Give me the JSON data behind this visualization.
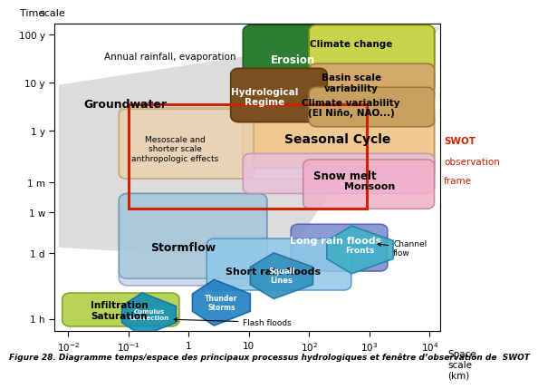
{
  "background_color": "#ffffff",
  "gray_band_color": "#c0c0c0",
  "time_labels": [
    "1 h",
    "1 d",
    "1 w",
    "1 m",
    "1 y",
    "10 y",
    "100 y"
  ],
  "space_labels": [
    "$10^{-2}$",
    "$10^{-1}$",
    "1",
    "10",
    "$10^{2}$",
    "$10^{3}$",
    "$10^{4}$"
  ],
  "boxes": {
    "climate_change": {
      "color": "#c8d44e",
      "ec": "#8a9900"
    },
    "erosion": {
      "color": "#2e7d32",
      "ec": "#1b5e20"
    },
    "basin_scale": {
      "color": "#d4a96a",
      "ec": "#a07840"
    },
    "hydro_regime": {
      "color": "#7b4f1e",
      "ec": "#5a3810"
    },
    "climate_var": {
      "color": "#c8a060",
      "ec": "#a07840"
    },
    "seasonal_cycle": {
      "color": "#f0c890",
      "ec": "#c09050"
    },
    "mesoscale": {
      "color": "#e8d0b0",
      "ec": "#c0a870"
    },
    "snow_melt": {
      "color": "#e8c0d8",
      "ec": "#c090b0"
    },
    "monsoon": {
      "color": "#f0b0c8",
      "ec": "#c08090"
    },
    "stormflow_bg": {
      "color": "#b0c8e0",
      "ec": "#7090b8"
    },
    "stormflow": {
      "color": "#a8c8e0",
      "ec": "#6090b0"
    },
    "long_rain": {
      "color": "#8090d0",
      "ec": "#5060b0"
    },
    "short_rain": {
      "color": "#90c8e8",
      "ec": "#5090c0"
    },
    "fronts": {
      "color": "#40b0c8",
      "ec": "#2080a0"
    },
    "squall": {
      "color": "#3090c0",
      "ec": "#2070a0"
    },
    "thunder": {
      "color": "#2080c0",
      "ec": "#1060a0"
    },
    "cumulus": {
      "color": "#1090b8",
      "ec": "#1070a0"
    },
    "infiltration": {
      "color": "#b8d050",
      "ec": "#80a020"
    }
  },
  "swot_color": "#cc2200",
  "caption": "Figure 28. Diagramme temps/espace des principaux processus hydrologiques et fenêtre d’observation de  SWOT"
}
